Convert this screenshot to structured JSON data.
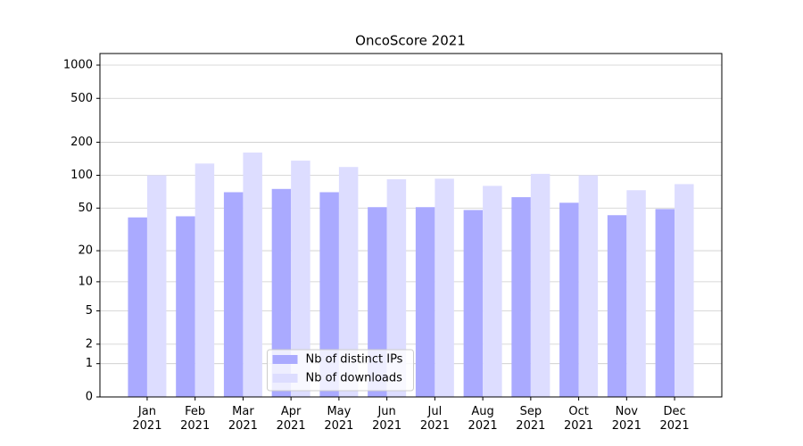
{
  "chart_data": {
    "type": "bar",
    "title": "OncoScore 2021",
    "categories": [
      "Jan 2021",
      "Feb 2021",
      "Mar 2021",
      "Apr 2021",
      "May 2021",
      "Jun 2021",
      "Jul 2021",
      "Aug 2021",
      "Sep 2021",
      "Oct 2021",
      "Nov 2021",
      "Dec 2021"
    ],
    "series": [
      {
        "name": "Nb of distinct IPs",
        "color": "#aaaaff",
        "values": [
          41,
          42,
          70,
          75,
          70,
          51,
          51,
          48,
          63,
          56,
          43,
          49
        ]
      },
      {
        "name": "Nb of downloads",
        "color": "#ddddff",
        "values": [
          100,
          128,
          161,
          136,
          119,
          92,
          93,
          80,
          103,
          100,
          73,
          83
        ]
      }
    ],
    "yscale": "log1p",
    "ylim": [
      0,
      1273
    ],
    "yticks": [
      0,
      1,
      2,
      5,
      10,
      20,
      50,
      100,
      200,
      500,
      1000
    ],
    "grid": true,
    "legend": "lower center"
  }
}
